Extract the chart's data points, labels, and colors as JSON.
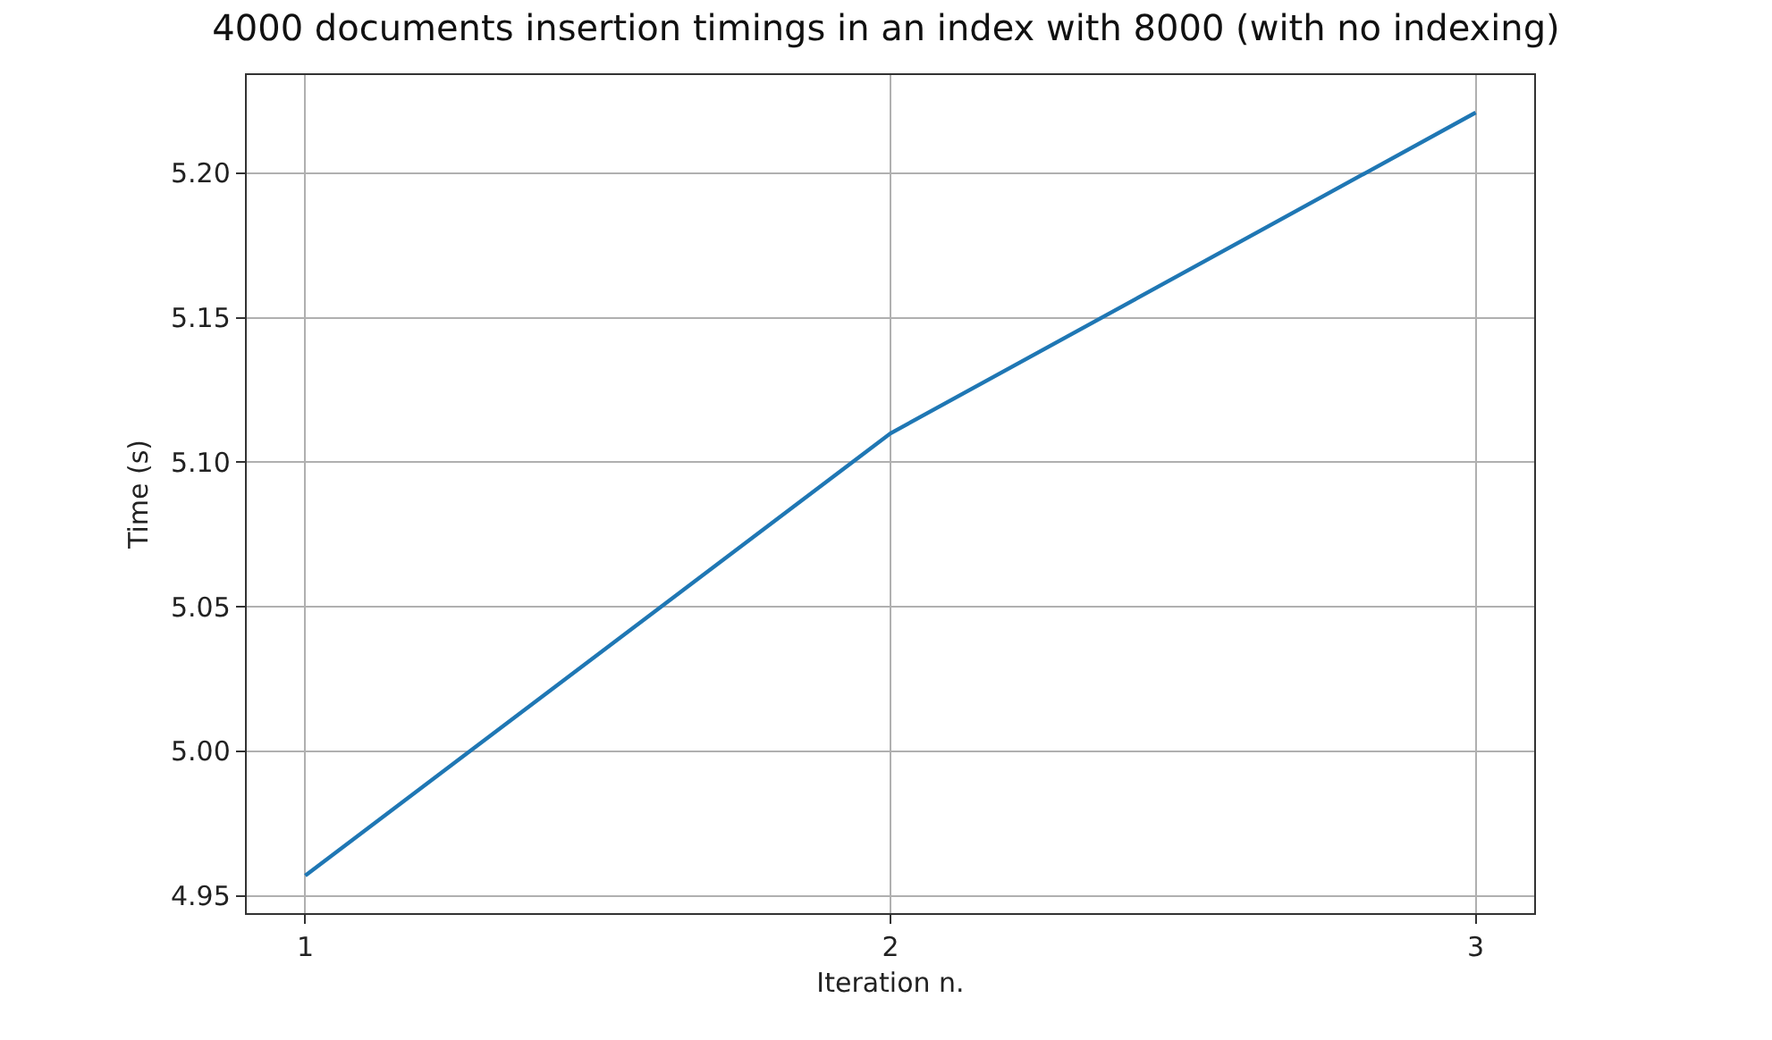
{
  "chart_data": {
    "type": "line",
    "title": "4000 documents insertion timings in an index with 8000 (with no indexing)",
    "xlabel": "Iteration n.",
    "ylabel": "Time (s)",
    "x": [
      1,
      2,
      3
    ],
    "series": [
      {
        "color": "#1f77b4",
        "values": [
          4.957,
          5.11,
          5.221
        ]
      }
    ],
    "xlim": [
      0.9,
      3.1
    ],
    "xticks": [
      1,
      2,
      3
    ],
    "ylim": [
      4.944,
      5.234
    ],
    "yticks": [
      {
        "value": 4.95,
        "label": "4.95"
      },
      {
        "value": 5.0,
        "label": "5.00"
      },
      {
        "value": 5.05,
        "label": "5.05"
      },
      {
        "value": 5.1,
        "label": "5.10"
      },
      {
        "value": 5.15,
        "label": "5.15"
      },
      {
        "value": 5.2,
        "label": "5.20"
      }
    ],
    "grid": true,
    "marker": "none",
    "line_style": "solid"
  }
}
